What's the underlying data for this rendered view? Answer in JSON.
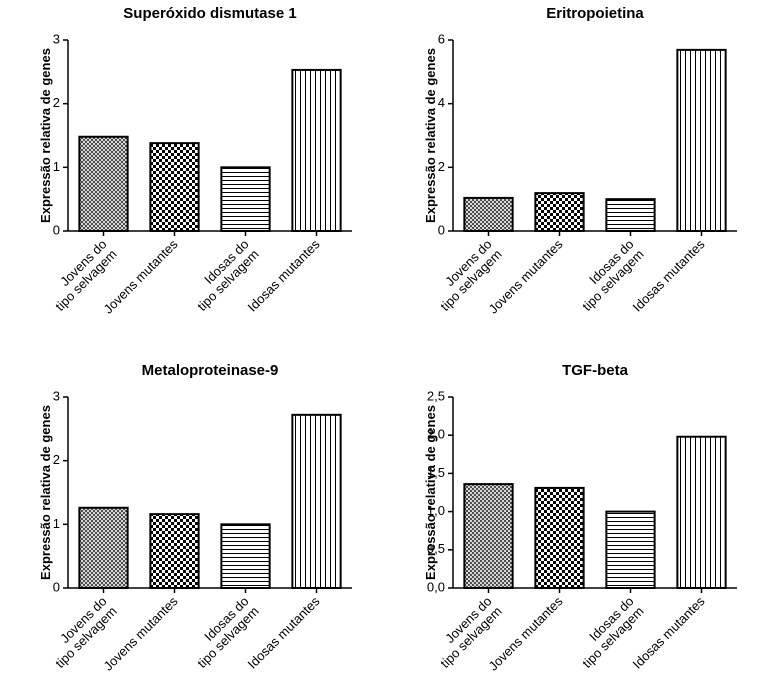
{
  "chart_data": [
    {
      "type": "bar",
      "title": "Superóxido dismutase 1",
      "y_label": "Expressão relativa de genes",
      "categories": [
        [
          "Jovens do",
          "tipo selvagem"
        ],
        [
          "Jovens mutantes"
        ],
        [
          "Idosas do",
          "tipo selvagem"
        ],
        [
          "Idosas mutantes"
        ]
      ],
      "values": [
        1.48,
        1.38,
        1.0,
        2.53
      ],
      "patterns": [
        "crosshatch",
        "checker",
        "hlines",
        "vlines"
      ],
      "ylim": [
        0,
        3
      ],
      "yticks": [
        0,
        1,
        2,
        3
      ]
    },
    {
      "type": "bar",
      "title": "Eritropoietina",
      "y_label": "Expressão relativa de genes",
      "categories": [
        [
          "Jovens do",
          "tipo selvagem"
        ],
        [
          "Jovens mutantes"
        ],
        [
          "Idosas do",
          "tipo selvagem"
        ],
        [
          "Idosas mutantes"
        ]
      ],
      "values": [
        1.04,
        1.19,
        1.0,
        5.69
      ],
      "patterns": [
        "crosshatch",
        "checker",
        "hlines",
        "vlines"
      ],
      "ylim": [
        0,
        6
      ],
      "yticks": [
        0,
        2,
        4,
        6
      ]
    },
    {
      "type": "bar",
      "title": "Metaloproteinase-9",
      "y_label": "Expressão relativa de genes",
      "categories": [
        [
          "Jovens do",
          "tipo selvagem"
        ],
        [
          "Jovens mutantes"
        ],
        [
          "Idosas do",
          "tipo selvagem"
        ],
        [
          "Idosas mutantes"
        ]
      ],
      "values": [
        1.26,
        1.16,
        1.0,
        2.72
      ],
      "patterns": [
        "crosshatch",
        "checker",
        "hlines",
        "vlines"
      ],
      "ylim": [
        0,
        3
      ],
      "yticks": [
        0,
        1,
        2,
        3
      ]
    },
    {
      "type": "bar",
      "title": "TGF-beta",
      "y_label": "Expressão relativa de genes",
      "categories": [
        [
          "Jovens do",
          "tipo selvagem"
        ],
        [
          "Jovens mutantes"
        ],
        [
          "Idosas do",
          "tipo selvagem"
        ],
        [
          "Idosas mutantes"
        ]
      ],
      "values": [
        1.36,
        1.31,
        1.0,
        1.98
      ],
      "patterns": [
        "crosshatch",
        "checker",
        "hlines",
        "vlines"
      ],
      "ylim": [
        0,
        2.5
      ],
      "yticks": [
        {
          "value": 0,
          "label": "0,0"
        },
        {
          "value": 0.5,
          "label": "0,5"
        },
        {
          "value": 1,
          "label": "1,0"
        },
        {
          "value": 1.5,
          "label": "1,5"
        },
        {
          "value": 2,
          "label": "2,0"
        },
        {
          "value": 2.5,
          "label": "2,5"
        }
      ]
    }
  ]
}
